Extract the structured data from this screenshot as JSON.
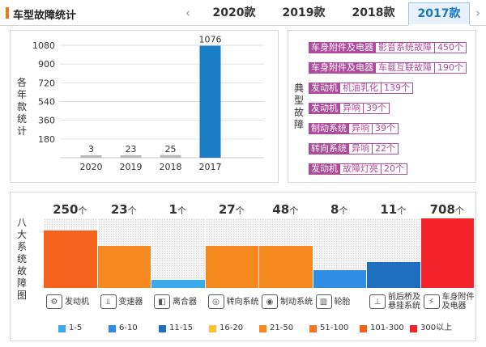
{
  "header": {
    "title": "车型故障统计",
    "prev_arrow": "‹",
    "next_arrow": "›",
    "tabs": [
      {
        "label": "2020款",
        "active": false
      },
      {
        "label": "2019款",
        "active": false
      },
      {
        "label": "2018款",
        "active": false
      },
      {
        "label": "2017款",
        "active": true
      }
    ]
  },
  "year_chart": {
    "side_label": [
      "各",
      "年",
      "款",
      "统",
      "计"
    ],
    "chart_data": {
      "type": "bar",
      "categories": [
        "2020",
        "2019",
        "2018",
        "2017"
      ],
      "values": [
        3,
        23,
        25,
        1076
      ],
      "ylim": [
        0,
        1080
      ],
      "yticks": [
        "180",
        "360",
        "540",
        "720",
        "900",
        "1080"
      ],
      "colors": [
        "#b8b8b8",
        "#b8b8b8",
        "#b8b8b8",
        "#1a7dc3"
      ],
      "grid": true
    }
  },
  "typical_defects": {
    "side_label": [
      "典",
      "型",
      "故",
      "障"
    ],
    "items": [
      {
        "system": "车身附件及电器",
        "issue": "影音系统故障",
        "count": "450个"
      },
      {
        "system": "车身附件及电器",
        "issue": "车载互联故障",
        "count": "190个"
      },
      {
        "system": "发动机",
        "issue": "机油乳化",
        "count": "139个"
      },
      {
        "system": "发动机",
        "issue": "异响",
        "count": "39个"
      },
      {
        "system": "制动系统",
        "issue": "异响",
        "count": "39个"
      },
      {
        "system": "转向系统",
        "issue": "异响",
        "count": "22个"
      },
      {
        "system": "发动机",
        "issue": "故障灯亮",
        "count": "20个"
      }
    ]
  },
  "eight_systems": {
    "side_label": [
      "八",
      "大",
      "系",
      "统",
      "故",
      "障",
      "图"
    ],
    "unit": "个",
    "columns": [
      {
        "value": "250",
        "level": 0.83,
        "color": "#f5621b",
        "icon": "engine-icon",
        "glyph": "⚙",
        "label": [
          "发动机"
        ]
      },
      {
        "value": "23",
        "level": 0.6,
        "color": "#f5891f",
        "icon": "gearbox-icon",
        "glyph": "⫫",
        "label": [
          "变速器"
        ]
      },
      {
        "value": "1",
        "level": 0.12,
        "color": "#3aaaea",
        "icon": "clutch-icon",
        "glyph": "◧",
        "label": [
          "离合器"
        ]
      },
      {
        "value": "27",
        "level": 0.6,
        "color": "#f5891f",
        "icon": "steering-icon",
        "glyph": "◎",
        "label": [
          "转向系统"
        ]
      },
      {
        "value": "48",
        "level": 0.6,
        "color": "#f5891f",
        "icon": "brake-icon",
        "glyph": "◉",
        "label": [
          "制动系统"
        ]
      },
      {
        "value": "8",
        "level": 0.26,
        "color": "#2f8de4",
        "icon": "tire-icon",
        "glyph": "▥",
        "label": [
          "轮胎"
        ]
      },
      {
        "value": "11",
        "level": 0.37,
        "color": "#1f6fc0",
        "icon": "axle-icon",
        "glyph": "⊥",
        "label": [
          "前后桥及",
          "悬挂系统"
        ]
      },
      {
        "value": "708",
        "level": 1.0,
        "color": "#f2242a",
        "icon": "body-electric-icon",
        "glyph": "⚡",
        "label": [
          "车身附件",
          "及电器"
        ]
      }
    ],
    "legend": [
      {
        "label": "1-5",
        "color": "#3aaaea"
      },
      {
        "label": "6-10",
        "color": "#2f8de4"
      },
      {
        "label": "11-15",
        "color": "#1f6fc0"
      },
      {
        "label": "16-20",
        "color": "#f7c233"
      },
      {
        "label": "21-50",
        "color": "#f5891f"
      },
      {
        "label": "51-100",
        "color": "#f5741c"
      },
      {
        "label": "101-300",
        "color": "#f5621b"
      },
      {
        "label": "300以上",
        "color": "#f2242a"
      }
    ]
  }
}
